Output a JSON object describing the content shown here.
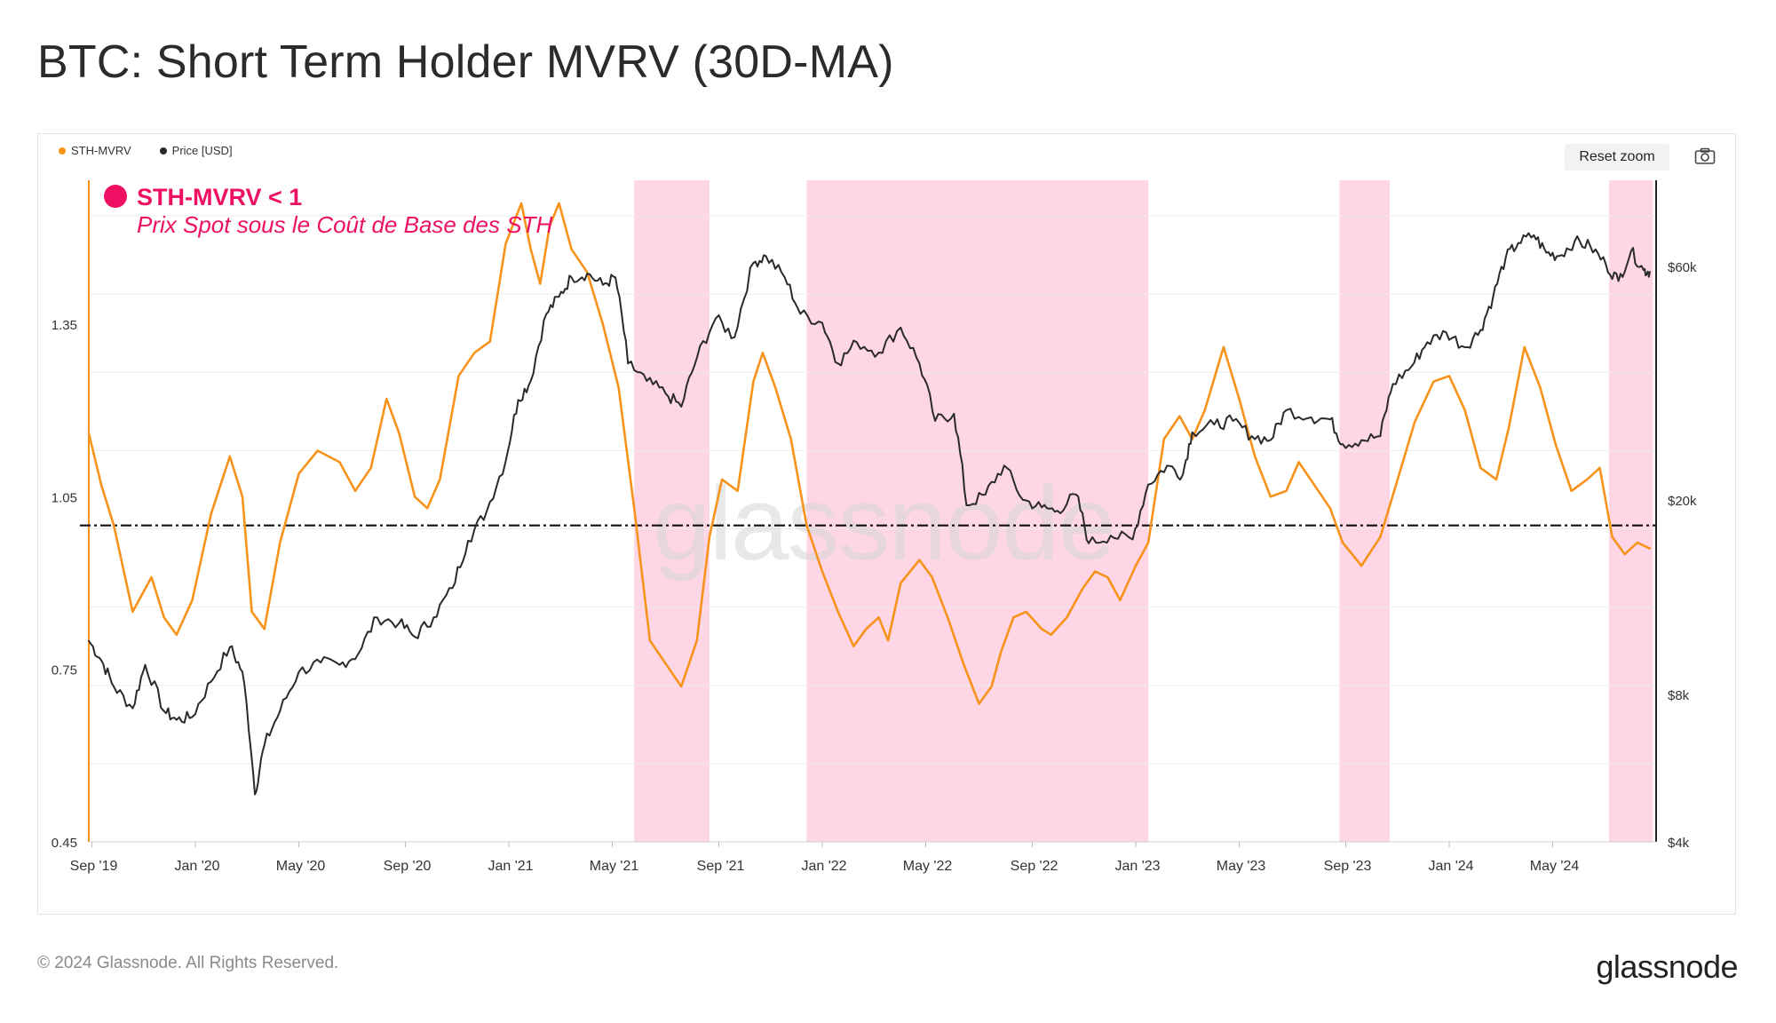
{
  "header": {
    "title": "BTC: Short Term Holder MVRV (30D-MA)"
  },
  "toolbar": {
    "reset_zoom_label": "Reset zoom",
    "camera_icon": "camera-icon"
  },
  "footer": {
    "copyright": "© 2024 Glassnode. All Rights Reserved.",
    "logo_text": "glassnode"
  },
  "chart_data": {
    "type": "line",
    "title": "BTC: Short Term Holder MVRV (30D-MA)",
    "watermark": "glassnode",
    "legend": [
      {
        "name": "STH-MVRV",
        "color": "#f7931a"
      },
      {
        "name": "Price [USD]",
        "color": "#2a2a2a"
      }
    ],
    "annotation": {
      "title": "STH-MVRV < 1",
      "subtitle": "Prix Spot sous le Coût de Base des STH",
      "color": "#ee1163"
    },
    "x_range": [
      2019.66,
      2024.66
    ],
    "x_ticks": [
      {
        "label": "Sep '19",
        "t": 2019.67
      },
      {
        "label": "Jan '20",
        "t": 2020.0
      },
      {
        "label": "May '20",
        "t": 2020.33
      },
      {
        "label": "Sep '20",
        "t": 2020.67
      },
      {
        "label": "Jan '21",
        "t": 2021.0
      },
      {
        "label": "May '21",
        "t": 2021.33
      },
      {
        "label": "Sep '21",
        "t": 2021.67
      },
      {
        "label": "Jan '22",
        "t": 2022.0
      },
      {
        "label": "May '22",
        "t": 2022.33
      },
      {
        "label": "Sep '22",
        "t": 2022.67
      },
      {
        "label": "Jan '23",
        "t": 2023.0
      },
      {
        "label": "May '23",
        "t": 2023.33
      },
      {
        "label": "Sep '23",
        "t": 2023.67
      },
      {
        "label": "Jan '24",
        "t": 2024.0
      },
      {
        "label": "May '24",
        "t": 2024.33
      }
    ],
    "left_axis": {
      "name": "STH-MVRV",
      "range": [
        0.45,
        1.6
      ],
      "ticks": [
        "0.45",
        "0.75",
        "1.05",
        "1.35"
      ],
      "tick_values": [
        0.45,
        0.75,
        1.05,
        1.35
      ]
    },
    "right_axis": {
      "name": "Price [USD]",
      "scale": "log",
      "range": [
        4000,
        90000
      ],
      "ticks": [
        "$4k",
        "$8k",
        "$20k",
        "$60k"
      ],
      "tick_values": [
        4000,
        8000,
        20000,
        60000
      ]
    },
    "reference_line": {
      "value": 1.0,
      "style": "dash-dot",
      "color": "#111111"
    },
    "shaded_regions": [
      {
        "from": 2021.4,
        "to": 2021.64,
        "color": "#ffd6e6"
      },
      {
        "from": 2021.95,
        "to": 2023.04,
        "color": "#ffd6e6"
      },
      {
        "from": 2023.65,
        "to": 2023.81,
        "color": "#ffd6e6"
      },
      {
        "from": 2024.51,
        "to": 2024.65,
        "color": "#ffd6e6"
      }
    ],
    "series": [
      {
        "name": "STH-MVRV",
        "color": "#f7931a",
        "axis": "left",
        "points": [
          [
            2019.66,
            1.16
          ],
          [
            2019.7,
            1.07
          ],
          [
            2019.74,
            1.0
          ],
          [
            2019.8,
            0.85
          ],
          [
            2019.86,
            0.91
          ],
          [
            2019.9,
            0.84
          ],
          [
            2019.94,
            0.81
          ],
          [
            2019.99,
            0.87
          ],
          [
            2020.05,
            1.02
          ],
          [
            2020.11,
            1.12
          ],
          [
            2020.15,
            1.05
          ],
          [
            2020.18,
            0.85
          ],
          [
            2020.22,
            0.82
          ],
          [
            2020.27,
            0.97
          ],
          [
            2020.33,
            1.09
          ],
          [
            2020.39,
            1.13
          ],
          [
            2020.46,
            1.11
          ],
          [
            2020.51,
            1.06
          ],
          [
            2020.56,
            1.1
          ],
          [
            2020.61,
            1.22
          ],
          [
            2020.65,
            1.16
          ],
          [
            2020.7,
            1.05
          ],
          [
            2020.74,
            1.03
          ],
          [
            2020.78,
            1.08
          ],
          [
            2020.84,
            1.26
          ],
          [
            2020.89,
            1.3
          ],
          [
            2020.94,
            1.32
          ],
          [
            2020.99,
            1.49
          ],
          [
            2021.04,
            1.56
          ],
          [
            2021.07,
            1.48
          ],
          [
            2021.1,
            1.42
          ],
          [
            2021.13,
            1.52
          ],
          [
            2021.16,
            1.56
          ],
          [
            2021.2,
            1.48
          ],
          [
            2021.25,
            1.44
          ],
          [
            2021.3,
            1.35
          ],
          [
            2021.35,
            1.24
          ],
          [
            2021.4,
            1.03
          ],
          [
            2021.45,
            0.8
          ],
          [
            2021.5,
            0.76
          ],
          [
            2021.55,
            0.72
          ],
          [
            2021.6,
            0.8
          ],
          [
            2021.64,
            0.98
          ],
          [
            2021.68,
            1.08
          ],
          [
            2021.73,
            1.06
          ],
          [
            2021.78,
            1.25
          ],
          [
            2021.81,
            1.3
          ],
          [
            2021.85,
            1.24
          ],
          [
            2021.9,
            1.15
          ],
          [
            2021.95,
            1.0
          ],
          [
            2022.0,
            0.92
          ],
          [
            2022.05,
            0.85
          ],
          [
            2022.1,
            0.79
          ],
          [
            2022.14,
            0.82
          ],
          [
            2022.18,
            0.84
          ],
          [
            2022.21,
            0.8
          ],
          [
            2022.25,
            0.9
          ],
          [
            2022.31,
            0.94
          ],
          [
            2022.35,
            0.91
          ],
          [
            2022.4,
            0.84
          ],
          [
            2022.45,
            0.76
          ],
          [
            2022.5,
            0.69
          ],
          [
            2022.54,
            0.72
          ],
          [
            2022.57,
            0.78
          ],
          [
            2022.61,
            0.84
          ],
          [
            2022.65,
            0.85
          ],
          [
            2022.7,
            0.82
          ],
          [
            2022.73,
            0.81
          ],
          [
            2022.78,
            0.84
          ],
          [
            2022.83,
            0.89
          ],
          [
            2022.87,
            0.92
          ],
          [
            2022.91,
            0.91
          ],
          [
            2022.95,
            0.87
          ],
          [
            2023.0,
            0.93
          ],
          [
            2023.04,
            0.97
          ],
          [
            2023.09,
            1.15
          ],
          [
            2023.14,
            1.19
          ],
          [
            2023.18,
            1.15
          ],
          [
            2023.22,
            1.2
          ],
          [
            2023.28,
            1.31
          ],
          [
            2023.33,
            1.22
          ],
          [
            2023.38,
            1.12
          ],
          [
            2023.43,
            1.05
          ],
          [
            2023.48,
            1.06
          ],
          [
            2023.52,
            1.11
          ],
          [
            2023.57,
            1.07
          ],
          [
            2023.62,
            1.03
          ],
          [
            2023.66,
            0.97
          ],
          [
            2023.72,
            0.93
          ],
          [
            2023.78,
            0.98
          ],
          [
            2023.83,
            1.07
          ],
          [
            2023.89,
            1.18
          ],
          [
            2023.95,
            1.25
          ],
          [
            2024.0,
            1.26
          ],
          [
            2024.05,
            1.2
          ],
          [
            2024.1,
            1.1
          ],
          [
            2024.15,
            1.08
          ],
          [
            2024.19,
            1.17
          ],
          [
            2024.24,
            1.31
          ],
          [
            2024.29,
            1.24
          ],
          [
            2024.34,
            1.14
          ],
          [
            2024.39,
            1.06
          ],
          [
            2024.44,
            1.08
          ],
          [
            2024.48,
            1.1
          ],
          [
            2024.52,
            0.98
          ],
          [
            2024.56,
            0.95
          ],
          [
            2024.6,
            0.97
          ],
          [
            2024.64,
            0.96
          ]
        ]
      },
      {
        "name": "Price [USD]",
        "color": "#2a2a2a",
        "axis": "right",
        "points": [
          [
            2019.66,
            10300
          ],
          [
            2019.7,
            9400
          ],
          [
            2019.74,
            8300
          ],
          [
            2019.8,
            7500
          ],
          [
            2019.84,
            9200
          ],
          [
            2019.9,
            7400
          ],
          [
            2019.94,
            7100
          ],
          [
            2019.99,
            7200
          ],
          [
            2020.05,
            8500
          ],
          [
            2020.11,
            10000
          ],
          [
            2020.15,
            8900
          ],
          [
            2020.19,
            5000
          ],
          [
            2020.22,
            6300
          ],
          [
            2020.27,
            7400
          ],
          [
            2020.33,
            8900
          ],
          [
            2020.4,
            9300
          ],
          [
            2020.46,
            9200
          ],
          [
            2020.52,
            9700
          ],
          [
            2020.58,
            11500
          ],
          [
            2020.65,
            11200
          ],
          [
            2020.7,
            10500
          ],
          [
            2020.76,
            11500
          ],
          [
            2020.82,
            13200
          ],
          [
            2020.87,
            16500
          ],
          [
            2020.93,
            19000
          ],
          [
            2020.99,
            24000
          ],
          [
            2021.03,
            32000
          ],
          [
            2021.07,
            35000
          ],
          [
            2021.12,
            48000
          ],
          [
            2021.16,
            52000
          ],
          [
            2021.2,
            57000
          ],
          [
            2021.25,
            58000
          ],
          [
            2021.3,
            55000
          ],
          [
            2021.34,
            57000
          ],
          [
            2021.38,
            38000
          ],
          [
            2021.44,
            35000
          ],
          [
            2021.5,
            33000
          ],
          [
            2021.55,
            31000
          ],
          [
            2021.6,
            39000
          ],
          [
            2021.66,
            47000
          ],
          [
            2021.72,
            43000
          ],
          [
            2021.78,
            61000
          ],
          [
            2021.82,
            63000
          ],
          [
            2021.88,
            57000
          ],
          [
            2021.93,
            48000
          ],
          [
            2022.0,
            46000
          ],
          [
            2022.05,
            38000
          ],
          [
            2022.11,
            42000
          ],
          [
            2022.18,
            40000
          ],
          [
            2022.25,
            45000
          ],
          [
            2022.31,
            38000
          ],
          [
            2022.36,
            29000
          ],
          [
            2022.42,
            30000
          ],
          [
            2022.46,
            19500
          ],
          [
            2022.52,
            20500
          ],
          [
            2022.58,
            23500
          ],
          [
            2022.64,
            20000
          ],
          [
            2022.7,
            19300
          ],
          [
            2022.75,
            19000
          ],
          [
            2022.81,
            20500
          ],
          [
            2022.85,
            16300
          ],
          [
            2022.92,
            16900
          ],
          [
            2022.99,
            16600
          ],
          [
            2023.04,
            21500
          ],
          [
            2023.1,
            23500
          ],
          [
            2023.15,
            22500
          ],
          [
            2023.18,
            27500
          ],
          [
            2023.25,
            28500
          ],
          [
            2023.31,
            29000
          ],
          [
            2023.37,
            27000
          ],
          [
            2023.43,
            26500
          ],
          [
            2023.48,
            30500
          ],
          [
            2023.56,
            29500
          ],
          [
            2023.62,
            29200
          ],
          [
            2023.66,
            26000
          ],
          [
            2023.72,
            26500
          ],
          [
            2023.78,
            27000
          ],
          [
            2023.82,
            34500
          ],
          [
            2023.88,
            37500
          ],
          [
            2023.93,
            42000
          ],
          [
            2023.99,
            44000
          ],
          [
            2024.05,
            41000
          ],
          [
            2024.1,
            44500
          ],
          [
            2024.14,
            52000
          ],
          [
            2024.18,
            62500
          ],
          [
            2024.22,
            67000
          ],
          [
            2024.27,
            69500
          ],
          [
            2024.31,
            64000
          ],
          [
            2024.35,
            63000
          ],
          [
            2024.4,
            67500
          ],
          [
            2024.45,
            66000
          ],
          [
            2024.5,
            60500
          ],
          [
            2024.54,
            56000
          ],
          [
            2024.58,
            64500
          ],
          [
            2024.62,
            59000
          ],
          [
            2024.64,
            58500
          ]
        ]
      }
    ]
  }
}
